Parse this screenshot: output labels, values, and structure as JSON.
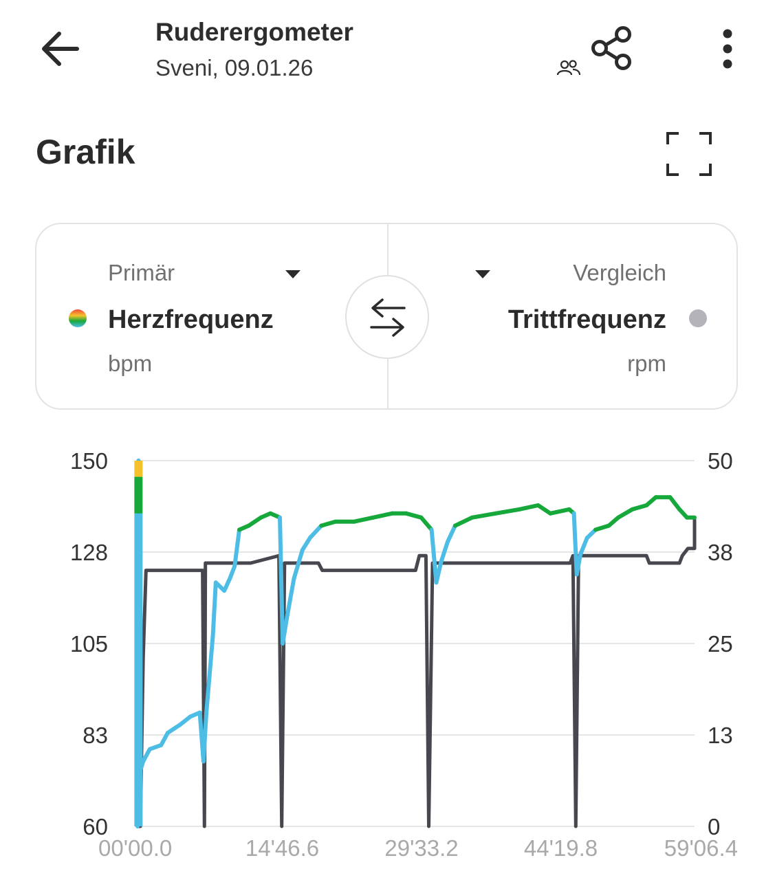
{
  "header": {
    "title": "Ruderergometer",
    "subtitle": "Sveni, 09.01.26"
  },
  "section": {
    "title": "Grafik"
  },
  "selector": {
    "primary": {
      "label": "Primär",
      "metric": "Herzfrequenz",
      "unit": "bpm"
    },
    "compare": {
      "label": "Vergleich",
      "metric": "Trittfrequenz",
      "unit": "rpm"
    }
  },
  "icons": {
    "back": "arrow-left-icon",
    "people": "people-icon",
    "share": "share-icon",
    "more": "more-vertical-icon",
    "fullscreen": "fullscreen-icon",
    "swap": "swap-icon",
    "dropdown": "caret-down-icon"
  },
  "colors": {
    "hr_low": "#4dbde6",
    "hr_mid": "#16a83a",
    "hr_high": "#f5c22c",
    "cadence": "#47474f",
    "grid": "#e6e6e6",
    "compare_dot": "#b3b3b9"
  },
  "chart_data": {
    "type": "line",
    "x_ticks": [
      "00'00.0",
      "14'46.6",
      "29'33.2",
      "44'19.8",
      "59'06.4"
    ],
    "y_left_ticks": [
      "150",
      "128",
      "105",
      "83",
      "60"
    ],
    "y_right_ticks": [
      "50",
      "38",
      "25",
      "13",
      "0"
    ],
    "y_left_range": [
      60,
      150
    ],
    "y_right_range": [
      0,
      50
    ],
    "x_range_min": [
      0,
      59.1
    ],
    "grid": "horizontal",
    "series": [
      {
        "name": "Herzfrequenz",
        "unit": "bpm",
        "axis": "left",
        "points": [
          [
            0,
            60
          ],
          [
            0.1,
            150
          ],
          [
            0.2,
            73
          ],
          [
            0.6,
            76
          ],
          [
            1.3,
            79
          ],
          [
            2.5,
            80
          ],
          [
            3.2,
            83
          ],
          [
            4.5,
            85
          ],
          [
            5.6,
            87
          ],
          [
            6.6,
            88
          ],
          [
            7.0,
            76
          ],
          [
            7.3,
            88
          ],
          [
            8.0,
            107
          ],
          [
            8.3,
            120
          ],
          [
            9.2,
            118
          ],
          [
            9.8,
            121
          ],
          [
            10.3,
            124
          ],
          [
            10.8,
            133
          ],
          [
            11.8,
            134
          ],
          [
            13.1,
            136
          ],
          [
            14.1,
            137
          ],
          [
            15.1,
            136
          ],
          [
            15.4,
            105
          ],
          [
            15.9,
            112
          ],
          [
            16.6,
            121
          ],
          [
            17.5,
            128
          ],
          [
            18.3,
            131
          ],
          [
            19.5,
            134
          ],
          [
            21.0,
            135
          ],
          [
            23.0,
            135
          ],
          [
            25.0,
            136
          ],
          [
            27.0,
            137
          ],
          [
            28.5,
            137
          ],
          [
            30.1,
            136
          ],
          [
            31.2,
            133
          ],
          [
            31.7,
            120
          ],
          [
            32.2,
            125
          ],
          [
            32.9,
            130
          ],
          [
            33.7,
            134
          ],
          [
            35.5,
            136
          ],
          [
            38.0,
            137
          ],
          [
            40.5,
            138
          ],
          [
            42.5,
            139
          ],
          [
            43.8,
            137
          ],
          [
            45.8,
            138
          ],
          [
            46.3,
            137
          ],
          [
            46.6,
            122
          ],
          [
            47.0,
            127
          ],
          [
            47.7,
            131
          ],
          [
            48.6,
            133
          ],
          [
            50.0,
            134
          ],
          [
            51.0,
            136
          ],
          [
            52.5,
            138
          ],
          [
            54.0,
            139
          ],
          [
            55.0,
            141
          ],
          [
            56.5,
            141
          ],
          [
            57.5,
            138
          ],
          [
            58.3,
            136
          ],
          [
            59.1,
            136
          ]
        ]
      },
      {
        "name": "Trittfrequenz",
        "unit": "rpm",
        "axis": "right",
        "points": [
          [
            0,
            0
          ],
          [
            0.3,
            0
          ],
          [
            0.6,
            23
          ],
          [
            0.9,
            35
          ],
          [
            1.3,
            35
          ],
          [
            6.9,
            35
          ],
          [
            7.1,
            0
          ],
          [
            7.2,
            36
          ],
          [
            12.0,
            36
          ],
          [
            15.0,
            37
          ],
          [
            15.3,
            0
          ],
          [
            15.6,
            36
          ],
          [
            19.2,
            36
          ],
          [
            19.6,
            35
          ],
          [
            29.5,
            35
          ],
          [
            29.9,
            37
          ],
          [
            30.6,
            37
          ],
          [
            30.9,
            0
          ],
          [
            31.3,
            36
          ],
          [
            45.9,
            36
          ],
          [
            46.2,
            37
          ],
          [
            46.5,
            0
          ],
          [
            46.8,
            37
          ],
          [
            54.0,
            37
          ],
          [
            54.3,
            36
          ],
          [
            57.5,
            36
          ],
          [
            57.8,
            37
          ],
          [
            58.4,
            38
          ],
          [
            59.1,
            38
          ],
          [
            59.5,
            42
          ]
        ]
      }
    ]
  }
}
